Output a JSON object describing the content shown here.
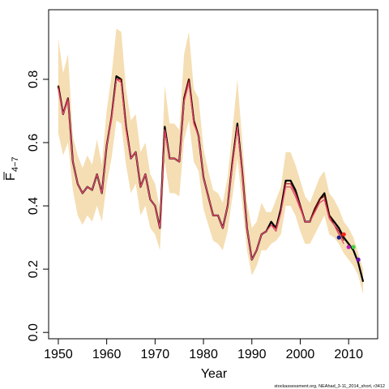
{
  "chart_data": {
    "type": "line",
    "xlabel": "Year",
    "ylabel_main": "F",
    "ylabel_sub": "4−7",
    "xlim": [
      1948,
      2016
    ],
    "ylim": [
      -0.02,
      1.02
    ],
    "x_ticks": [
      1950,
      1960,
      1970,
      1980,
      1990,
      2000,
      2010
    ],
    "y_ticks": [
      0.0,
      0.2,
      0.4,
      0.6,
      0.8
    ],
    "y_tick_labels": [
      "0.0",
      "0.2",
      "0.4",
      "0.6",
      "0.8"
    ],
    "band_color": "#f5deb3",
    "years": [
      1950,
      1951,
      1952,
      1953,
      1954,
      1955,
      1956,
      1957,
      1958,
      1959,
      1960,
      1961,
      1962,
      1963,
      1964,
      1965,
      1966,
      1967,
      1968,
      1969,
      1970,
      1971,
      1972,
      1973,
      1974,
      1975,
      1976,
      1977,
      1978,
      1979,
      1980,
      1981,
      1982,
      1983,
      1984,
      1985,
      1986,
      1987,
      1988,
      1989,
      1990,
      1991,
      1992,
      1993,
      1994,
      1995,
      1996,
      1997,
      1998,
      1999,
      2000,
      2001,
      2002,
      2003,
      2004,
      2005,
      2006,
      2007,
      2008,
      2009,
      2010,
      2011,
      2012,
      2013
    ],
    "band_upper": [
      0.93,
      0.82,
      0.88,
      0.62,
      0.56,
      0.52,
      0.56,
      0.53,
      0.61,
      0.53,
      0.7,
      0.81,
      0.96,
      0.95,
      0.77,
      0.67,
      0.69,
      0.57,
      0.6,
      0.5,
      0.47,
      0.39,
      0.78,
      0.66,
      0.66,
      0.64,
      0.88,
      0.95,
      0.77,
      0.74,
      0.58,
      0.51,
      0.45,
      0.44,
      0.41,
      0.49,
      0.64,
      0.8,
      0.61,
      0.41,
      0.33,
      0.35,
      0.41,
      0.38,
      0.38,
      0.42,
      0.46,
      0.57,
      0.57,
      0.53,
      0.48,
      0.43,
      0.41,
      0.45,
      0.49,
      0.51,
      0.44,
      0.42,
      0.39,
      0.35,
      0.33,
      0.3,
      0.25,
      0.2
    ],
    "band_lower": [
      0.63,
      0.56,
      0.6,
      0.45,
      0.37,
      0.34,
      0.37,
      0.35,
      0.4,
      0.35,
      0.47,
      0.55,
      0.67,
      0.66,
      0.53,
      0.44,
      0.47,
      0.37,
      0.4,
      0.33,
      0.31,
      0.26,
      0.54,
      0.44,
      0.44,
      0.43,
      0.61,
      0.67,
      0.54,
      0.51,
      0.39,
      0.34,
      0.29,
      0.28,
      0.26,
      0.32,
      0.43,
      0.55,
      0.41,
      0.26,
      0.18,
      0.21,
      0.26,
      0.26,
      0.28,
      0.29,
      0.31,
      0.4,
      0.4,
      0.37,
      0.32,
      0.28,
      0.28,
      0.31,
      0.34,
      0.37,
      0.31,
      0.3,
      0.28,
      0.25,
      0.23,
      0.21,
      0.18,
      0.12
    ],
    "series": [
      {
        "color": "#000000",
        "width": 2.2,
        "values": [
          0.78,
          0.69,
          0.74,
          0.54,
          0.47,
          0.44,
          0.46,
          0.45,
          0.5,
          0.44,
          0.59,
          0.68,
          0.81,
          0.8,
          0.65,
          0.55,
          0.57,
          0.46,
          0.5,
          0.42,
          0.4,
          0.33,
          0.65,
          0.55,
          0.55,
          0.54,
          0.74,
          0.8,
          0.67,
          0.62,
          0.49,
          0.43,
          0.37,
          0.37,
          0.33,
          0.4,
          0.54,
          0.66,
          0.51,
          0.33,
          0.23,
          0.26,
          0.31,
          0.32,
          0.35,
          0.33,
          0.39,
          0.48,
          0.48,
          0.45,
          0.4,
          0.35,
          0.35,
          0.39,
          0.42,
          0.44,
          0.37,
          0.35,
          0.33,
          0.3,
          0.28,
          0.26,
          0.22,
          0.16
        ]
      },
      {
        "color": "#8b1010",
        "width": 1.2,
        "values": [
          0.78,
          0.69,
          0.74,
          0.54,
          0.47,
          0.44,
          0.46,
          0.45,
          0.5,
          0.44,
          0.59,
          0.68,
          0.8,
          0.8,
          0.65,
          0.55,
          0.57,
          0.46,
          0.5,
          0.42,
          0.4,
          0.33,
          0.64,
          0.55,
          0.55,
          0.54,
          0.74,
          0.8,
          0.67,
          0.62,
          0.49,
          0.43,
          0.37,
          0.37,
          0.33,
          0.4,
          0.54,
          0.65,
          0.51,
          0.33,
          0.23,
          0.26,
          0.31,
          0.32,
          0.34,
          0.33,
          0.38,
          0.47,
          0.47,
          0.44,
          0.4,
          0.35,
          0.35,
          0.39,
          0.42,
          0.43,
          0.37,
          0.34,
          0.32,
          0.29
        ]
      },
      {
        "color": "#cc2a4a",
        "width": 1.2,
        "values": [
          0.77,
          0.69,
          0.74,
          0.54,
          0.47,
          0.44,
          0.46,
          0.45,
          0.5,
          0.44,
          0.59,
          0.68,
          0.8,
          0.79,
          0.64,
          0.55,
          0.57,
          0.46,
          0.5,
          0.42,
          0.4,
          0.33,
          0.64,
          0.55,
          0.55,
          0.54,
          0.73,
          0.79,
          0.66,
          0.62,
          0.49,
          0.43,
          0.37,
          0.37,
          0.33,
          0.4,
          0.53,
          0.65,
          0.51,
          0.33,
          0.23,
          0.26,
          0.31,
          0.32,
          0.34,
          0.32,
          0.38,
          0.47,
          0.47,
          0.44,
          0.4,
          0.35,
          0.35,
          0.38,
          0.41,
          0.42,
          0.36,
          0.34,
          0.31
        ]
      },
      {
        "color": "#e64a70",
        "width": 1.2,
        "values": [
          0.77,
          0.69,
          0.73,
          0.54,
          0.47,
          0.44,
          0.46,
          0.45,
          0.5,
          0.44,
          0.59,
          0.67,
          0.8,
          0.79,
          0.64,
          0.55,
          0.57,
          0.46,
          0.5,
          0.42,
          0.4,
          0.33,
          0.64,
          0.55,
          0.55,
          0.54,
          0.73,
          0.79,
          0.66,
          0.62,
          0.49,
          0.43,
          0.37,
          0.37,
          0.33,
          0.4,
          0.53,
          0.65,
          0.5,
          0.33,
          0.23,
          0.26,
          0.31,
          0.32,
          0.34,
          0.32,
          0.38,
          0.46,
          0.46,
          0.43,
          0.39,
          0.35,
          0.35,
          0.38,
          0.41,
          0.42,
          0.36,
          0.34,
          0.31,
          0.28
        ]
      }
    ],
    "endpoints": [
      {
        "year": 2008,
        "value": 0.3,
        "color": "#1a1a8c"
      },
      {
        "year": 2009,
        "value": 0.31,
        "color": "#ff2020"
      },
      {
        "year": 2010,
        "value": 0.27,
        "color": "#c020c0"
      },
      {
        "year": 2011,
        "value": 0.27,
        "color": "#40d040"
      },
      {
        "year": 2012,
        "value": 0.23,
        "color": "#6a0dad"
      }
    ],
    "credit": "stockassessment.org, NEAhad_3-11_2014_short, r3412"
  }
}
